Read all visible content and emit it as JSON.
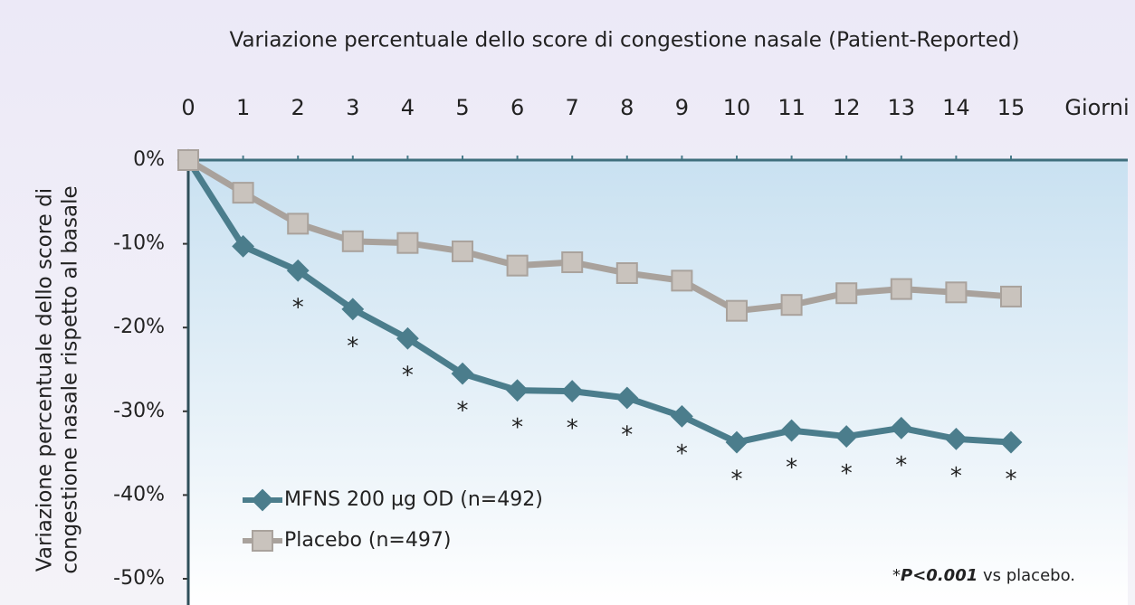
{
  "chart_data": {
    "type": "line",
    "title": "Variazione percentuale dello score di congestione nasale (Patient-Reported)",
    "xlabel": "Giorni",
    "ylabel": [
      "Variazione percentuale dello score di",
      "congestione nasale rispetto al basale"
    ],
    "x": [
      0,
      1,
      2,
      3,
      4,
      5,
      6,
      7,
      8,
      9,
      10,
      11,
      12,
      13,
      14,
      15
    ],
    "xlim": [
      0,
      15
    ],
    "xticks": [
      0,
      1,
      2,
      3,
      4,
      5,
      6,
      7,
      8,
      9,
      10,
      11,
      12,
      13,
      14,
      15
    ],
    "ylim": [
      -50,
      0
    ],
    "yticks": [
      {
        "value": 0,
        "label": "0%"
      },
      {
        "value": -10,
        "label": "-10%"
      },
      {
        "value": -20,
        "label": "-20%"
      },
      {
        "value": -30,
        "label": "-30%"
      },
      {
        "value": -40,
        "label": "-40%"
      },
      {
        "value": -50,
        "label": "-50%"
      }
    ],
    "series": [
      {
        "name": "MFNS 200 µg OD (n=492)",
        "color": "#4b7d8c",
        "marker": "diamond",
        "values": [
          0,
          -10.3,
          -13.2,
          -17.8,
          -21.3,
          -25.5,
          -27.5,
          -27.6,
          -28.4,
          -30.6,
          -33.7,
          -32.3,
          -33.0,
          -32.0,
          -33.3,
          -33.7
        ]
      },
      {
        "name": "Placebo (n=497)",
        "color": "#a9a29c",
        "marker": "square",
        "values": [
          0,
          -3.9,
          -7.6,
          -9.7,
          -9.9,
          -10.9,
          -12.6,
          -12.2,
          -13.5,
          -14.4,
          -18.0,
          -17.3,
          -15.9,
          -15.4,
          -15.8,
          -16.3
        ]
      }
    ],
    "significance_label": "*",
    "significant_days": [
      2,
      3,
      4,
      5,
      6,
      7,
      8,
      9,
      10,
      11,
      12,
      13,
      14,
      15
    ],
    "footnote": [
      "*",
      "P<0.001",
      " vs placebo."
    ]
  }
}
